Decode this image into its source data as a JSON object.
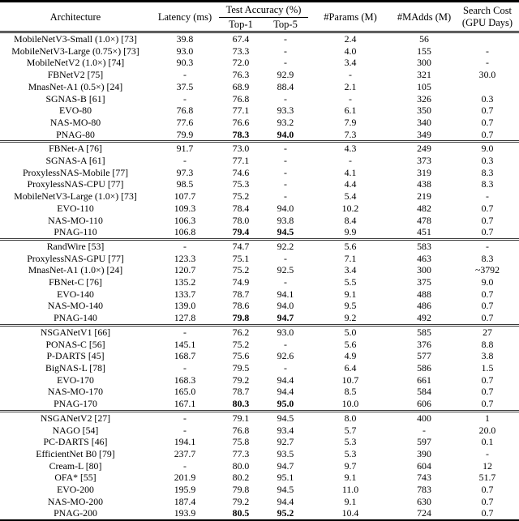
{
  "table": {
    "header": {
      "architecture": "Architecture",
      "latency": "Latency (ms)",
      "test_accuracy": "Test Accuracy (%)",
      "top1": "Top-1",
      "top5": "Top-5",
      "params": "#Params (M)",
      "madds": "#MAdds (M)",
      "search_cost_line1": "Search Cost",
      "search_cost_line2": "(GPU Days)"
    },
    "groups": [
      {
        "rows": [
          {
            "name": "MobileNetV3-Small (1.0×) [73]",
            "latency": "39.8",
            "top1": "67.4",
            "top5": "-",
            "params": "2.4",
            "madds": "56",
            "cost": ""
          },
          {
            "name": "MobileNetV3-Large (0.75×) [73]",
            "latency": "93.0",
            "top1": "73.3",
            "top5": "-",
            "params": "4.0",
            "madds": "155",
            "cost": "-"
          },
          {
            "name": "MobileNetV2 (1.0×) [74]",
            "latency": "90.3",
            "top1": "72.0",
            "top5": "-",
            "params": "3.4",
            "madds": "300",
            "cost": "-"
          },
          {
            "name": "FBNetV2 [75]",
            "latency": "-",
            "top1": "76.3",
            "top5": "92.9",
            "params": "-",
            "madds": "321",
            "cost": "30.0"
          },
          {
            "name": "MnasNet-A1 (0.5×) [24]",
            "latency": "37.5",
            "top1": "68.9",
            "top5": "88.4",
            "params": "2.1",
            "madds": "105",
            "cost": ""
          },
          {
            "name": "SGNAS-B [61]",
            "latency": "-",
            "top1": "76.8",
            "top5": "-",
            "params": "-",
            "madds": "326",
            "cost": "0.3"
          },
          {
            "name": "EVO-80",
            "latency": "76.8",
            "top1": "77.1",
            "top5": "93.3",
            "params": "6.1",
            "madds": "350",
            "cost": "0.7"
          },
          {
            "name": "NAS-MO-80",
            "latency": "77.6",
            "top1": "76.6",
            "top5": "93.2",
            "params": "7.9",
            "madds": "340",
            "cost": "0.7"
          },
          {
            "name": "PNAG-80",
            "latency": "79.9",
            "top1": "78.3",
            "top5": "94.0",
            "params": "7.3",
            "madds": "349",
            "cost": "0.7",
            "bold": true
          }
        ]
      },
      {
        "rows": [
          {
            "name": "FBNet-A [76]",
            "latency": "91.7",
            "top1": "73.0",
            "top5": "-",
            "params": "4.3",
            "madds": "249",
            "cost": "9.0"
          },
          {
            "name": "SGNAS-A [61]",
            "latency": "-",
            "top1": "77.1",
            "top5": "-",
            "params": "-",
            "madds": "373",
            "cost": "0.3"
          },
          {
            "name": "ProxylessNAS-Mobile [77]",
            "latency": "97.3",
            "top1": "74.6",
            "top5": "-",
            "params": "4.1",
            "madds": "319",
            "cost": "8.3"
          },
          {
            "name": "ProxylessNAS-CPU [77]",
            "latency": "98.5",
            "top1": "75.3",
            "top5": "-",
            "params": "4.4",
            "madds": "438",
            "cost": "8.3"
          },
          {
            "name": "MobileNetV3-Large (1.0×) [73]",
            "latency": "107.7",
            "top1": "75.2",
            "top5": "-",
            "params": "5.4",
            "madds": "219",
            "cost": "-"
          },
          {
            "name": "EVO-110",
            "latency": "109.3",
            "top1": "78.4",
            "top5": "94.0",
            "params": "10.2",
            "madds": "482",
            "cost": "0.7"
          },
          {
            "name": "NAS-MO-110",
            "latency": "106.3",
            "top1": "78.0",
            "top5": "93.8",
            "params": "8.4",
            "madds": "478",
            "cost": "0.7"
          },
          {
            "name": "PNAG-110",
            "latency": "106.8",
            "top1": "79.4",
            "top5": "94.5",
            "params": "9.9",
            "madds": "451",
            "cost": "0.7",
            "bold": true
          }
        ]
      },
      {
        "rows": [
          {
            "name": "RandWire [53]",
            "latency": "-",
            "top1": "74.7",
            "top5": "92.2",
            "params": "5.6",
            "madds": "583",
            "cost": "-"
          },
          {
            "name": "ProxylessNAS-GPU [77]",
            "latency": "123.3",
            "top1": "75.1",
            "top5": "-",
            "params": "7.1",
            "madds": "463",
            "cost": "8.3"
          },
          {
            "name": "MnasNet-A1 (1.0×) [24]",
            "latency": "120.7",
            "top1": "75.2",
            "top5": "92.5",
            "params": "3.4",
            "madds": "300",
            "cost": "~3792"
          },
          {
            "name": "FBNet-C [76]",
            "latency": "135.2",
            "top1": "74.9",
            "top5": "-",
            "params": "5.5",
            "madds": "375",
            "cost": "9.0"
          },
          {
            "name": "EVO-140",
            "latency": "133.7",
            "top1": "78.7",
            "top5": "94.1",
            "params": "9.1",
            "madds": "488",
            "cost": "0.7"
          },
          {
            "name": "NAS-MO-140",
            "latency": "139.0",
            "top1": "78.6",
            "top5": "94.0",
            "params": "9.5",
            "madds": "486",
            "cost": "0.7"
          },
          {
            "name": "PNAG-140",
            "latency": "127.8",
            "top1": "79.8",
            "top5": "94.7",
            "params": "9.2",
            "madds": "492",
            "cost": "0.7",
            "bold": true
          }
        ]
      },
      {
        "rows": [
          {
            "name": "NSGANetV1 [66]",
            "latency": "-",
            "top1": "76.2",
            "top5": "93.0",
            "params": "5.0",
            "madds": "585",
            "cost": "27"
          },
          {
            "name": "PONAS-C [56]",
            "latency": "145.1",
            "top1": "75.2",
            "top5": "-",
            "params": "5.6",
            "madds": "376",
            "cost": "8.8"
          },
          {
            "name": "P-DARTS [45]",
            "latency": "168.7",
            "top1": "75.6",
            "top5": "92.6",
            "params": "4.9",
            "madds": "577",
            "cost": "3.8"
          },
          {
            "name": "BigNAS-L [78]",
            "latency": "-",
            "top1": "79.5",
            "top5": "-",
            "params": "6.4",
            "madds": "586",
            "cost": "1.5"
          },
          {
            "name": "EVO-170",
            "latency": "168.3",
            "top1": "79.2",
            "top5": "94.4",
            "params": "10.7",
            "madds": "661",
            "cost": "0.7"
          },
          {
            "name": "NAS-MO-170",
            "latency": "165.0",
            "top1": "78.7",
            "top5": "94.4",
            "params": "8.5",
            "madds": "584",
            "cost": "0.7"
          },
          {
            "name": "PNAG-170",
            "latency": "167.1",
            "top1": "80.3",
            "top5": "95.0",
            "params": "10.0",
            "madds": "606",
            "cost": "0.7",
            "bold": true
          }
        ]
      },
      {
        "rows": [
          {
            "name": "NSGANetV2 [27]",
            "latency": "-",
            "top1": "79.1",
            "top5": "94.5",
            "params": "8.0",
            "madds": "400",
            "cost": "1"
          },
          {
            "name": "NAGO [54]",
            "latency": "-",
            "top1": "76.8",
            "top5": "93.4",
            "params": "5.7",
            "madds": "-",
            "cost": "20.0"
          },
          {
            "name": "PC-DARTS [46]",
            "latency": "194.1",
            "top1": "75.8",
            "top5": "92.7",
            "params": "5.3",
            "madds": "597",
            "cost": "0.1"
          },
          {
            "name": "EfficientNet B0 [79]",
            "latency": "237.7",
            "top1": "77.3",
            "top5": "93.5",
            "params": "5.3",
            "madds": "390",
            "cost": "-"
          },
          {
            "name": "Cream-L [80]",
            "latency": "-",
            "top1": "80.0",
            "top5": "94.7",
            "params": "9.7",
            "madds": "604",
            "cost": "12"
          },
          {
            "name": "OFA* [55]",
            "latency": "201.9",
            "top1": "80.2",
            "top5": "95.1",
            "params": "9.1",
            "madds": "743",
            "cost": "51.7"
          },
          {
            "name": "EVO-200",
            "latency": "195.9",
            "top1": "79.8",
            "top5": "94.5",
            "params": "11.0",
            "madds": "783",
            "cost": "0.7"
          },
          {
            "name": "NAS-MO-200",
            "latency": "187.4",
            "top1": "79.2",
            "top5": "94.4",
            "params": "9.1",
            "madds": "630",
            "cost": "0.7"
          },
          {
            "name": "PNAG-200",
            "latency": "193.9",
            "top1": "80.5",
            "top5": "95.2",
            "params": "10.4",
            "madds": "724",
            "cost": "0.7",
            "bold": true
          }
        ]
      }
    ]
  }
}
